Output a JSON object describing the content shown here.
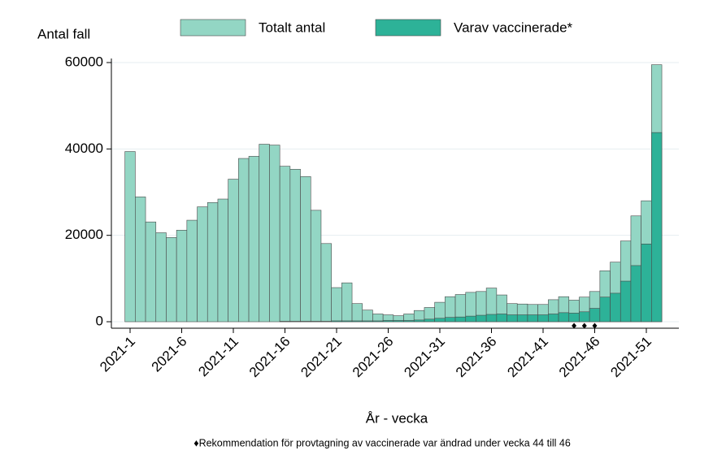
{
  "chart_data": {
    "type": "bar",
    "y_axis_label": "Antal fall",
    "x_axis_label": "År - vecka",
    "footnote": "♦Rekommendation för provtagning av vaccinerade var ändrad under vecka 44 till 46",
    "categories": [
      "2021-1",
      null,
      null,
      null,
      null,
      "2021-6",
      null,
      null,
      null,
      null,
      "2021-11",
      null,
      null,
      null,
      null,
      "2021-16",
      null,
      null,
      null,
      null,
      "2021-21",
      null,
      null,
      null,
      null,
      "2021-26",
      null,
      null,
      null,
      null,
      "2021-31",
      null,
      null,
      null,
      null,
      "2021-36",
      null,
      null,
      null,
      null,
      "2021-41",
      null,
      null,
      null,
      null,
      "2021-46",
      null,
      null,
      null,
      null,
      "2021-51",
      null
    ],
    "series": [
      {
        "name": "Totalt antal",
        "color": "#93d6c4",
        "values": [
          39400,
          28900,
          23100,
          20600,
          19500,
          21200,
          23500,
          26600,
          27600,
          28400,
          33000,
          37800,
          38300,
          41100,
          40900,
          36000,
          35300,
          33600,
          25800,
          18100,
          7900,
          9000,
          4200,
          2700,
          1800,
          1600,
          1400,
          1800,
          2600,
          3300,
          4500,
          5800,
          6300,
          6800,
          7000,
          7800,
          6200,
          4200,
          4100,
          4000,
          4000,
          5100,
          5800,
          5000,
          5700,
          7000,
          11800,
          13800,
          18700,
          24500,
          28000,
          59500
        ]
      },
      {
        "name": "Varav vaccinerade*",
        "color": "#2db298",
        "values": [
          0,
          0,
          0,
          0,
          0,
          0,
          0,
          0,
          0,
          0,
          0,
          0,
          0,
          0,
          0,
          100,
          100,
          100,
          100,
          100,
          200,
          200,
          200,
          200,
          200,
          300,
          300,
          300,
          400,
          600,
          800,
          1000,
          1100,
          1300,
          1500,
          1700,
          1800,
          1600,
          1600,
          1600,
          1600,
          1800,
          2100,
          2000,
          2300,
          3100,
          5700,
          6600,
          9400,
          13000,
          18000,
          43800
        ]
      }
    ],
    "marker_weeks": [
      44,
      45,
      46
    ],
    "ylim": [
      -1500,
      60000
    ],
    "yticks": [
      0,
      20000,
      40000,
      60000
    ],
    "grid": true
  }
}
